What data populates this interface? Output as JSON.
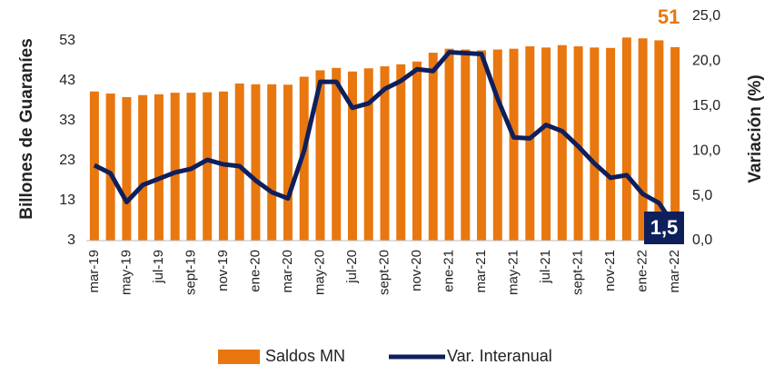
{
  "chart_data": {
    "type": "bar",
    "categories": [
      "mar-19",
      null,
      "may-19",
      null,
      "jul-19",
      null,
      "sept-19",
      null,
      "nov-19",
      null,
      "ene-20",
      null,
      "mar-20",
      null,
      "may-20",
      null,
      "jul-20",
      null,
      "sept-20",
      null,
      "nov-20",
      null,
      "ene-21",
      null,
      "mar-21",
      null,
      "may-21",
      null,
      "jul-21",
      null,
      "sept-21",
      null,
      "nov-21",
      null,
      "ene-22",
      null,
      "mar-22"
    ],
    "series": [
      {
        "name": "Saldos MN",
        "type": "bar",
        "color": "#e8770f",
        "values": [
          40.3,
          39.8,
          38.9,
          39.4,
          39.6,
          40.0,
          40.0,
          40.1,
          40.3,
          42.3,
          42.1,
          42.1,
          42.0,
          44.0,
          45.6,
          46.2,
          45.3,
          46.1,
          46.6,
          47.1,
          47.8,
          50.0,
          51.0,
          50.8,
          50.6,
          50.8,
          51.0,
          51.6,
          51.3,
          51.9,
          51.6,
          51.3,
          51.2,
          53.8,
          53.6,
          53.1,
          51.4
        ],
        "value_labels": [
          null,
          null,
          null,
          null,
          null,
          null,
          null,
          null,
          null,
          null,
          null,
          null,
          null,
          null,
          null,
          null,
          null,
          null,
          null,
          null,
          null,
          null,
          null,
          null,
          null,
          null,
          null,
          null,
          null,
          null,
          null,
          null,
          null,
          null,
          null,
          null,
          "51"
        ]
      },
      {
        "name": "Var. Interanual",
        "type": "line",
        "axis": "y2",
        "color": "#0f1f5c",
        "values": [
          8.4,
          7.5,
          4.3,
          6.2,
          6.9,
          7.6,
          8.0,
          9.0,
          8.5,
          8.3,
          6.7,
          5.4,
          4.7,
          10.0,
          17.7,
          17.7,
          14.8,
          15.3,
          16.9,
          17.8,
          19.1,
          18.9,
          21.0,
          20.9,
          20.8,
          15.8,
          11.5,
          11.4,
          12.9,
          12.2,
          10.5,
          8.6,
          7.0,
          7.3,
          5.2,
          4.2,
          1.5
        ],
        "value_labels": [
          null,
          null,
          null,
          null,
          null,
          null,
          null,
          null,
          null,
          null,
          null,
          null,
          null,
          null,
          null,
          null,
          null,
          null,
          null,
          null,
          null,
          null,
          null,
          null,
          null,
          null,
          null,
          null,
          null,
          null,
          null,
          null,
          null,
          null,
          null,
          null,
          "1,5"
        ]
      }
    ],
    "ylabel": "Billones de Guaraníes",
    "y2label": "Variación (%)",
    "ylim": [
      3,
      59.1
    ],
    "yticks": [
      3,
      13,
      23,
      33,
      43,
      53
    ],
    "y2lim": [
      0,
      25
    ],
    "y2ticks": [
      {
        "value": 0,
        "label": "0,0"
      },
      {
        "value": 5,
        "label": "5,0"
      },
      {
        "value": 10,
        "label": "10,0"
      },
      {
        "value": 15,
        "label": "15,0"
      },
      {
        "value": 20,
        "label": "20,0"
      },
      {
        "value": 25,
        "label": "25,0"
      }
    ]
  }
}
